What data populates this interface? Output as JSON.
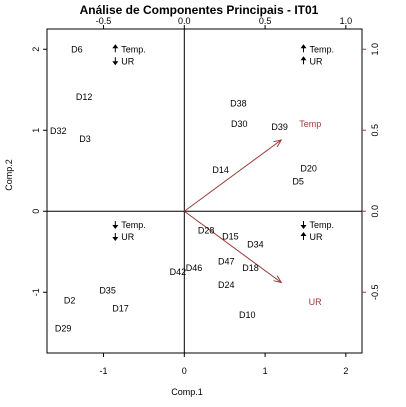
{
  "colors": {
    "ink": "#000000",
    "vector": "#9b3a3a"
  },
  "chart_data": {
    "type": "scatter",
    "title": "Análise de Componentes Principais - IT01",
    "xlabel": "Comp.1",
    "ylabel": "Comp.2",
    "xlim": [
      -1.7,
      2.2
    ],
    "ylim": [
      -1.75,
      2.25
    ],
    "xticks": [
      {
        "v": -1,
        "label": "-1"
      },
      {
        "v": 0,
        "label": "0"
      },
      {
        "v": 1,
        "label": "1"
      },
      {
        "v": 2,
        "label": "2"
      }
    ],
    "yticks": [
      {
        "v": -1,
        "label": "-1"
      },
      {
        "v": 0,
        "label": "0"
      },
      {
        "v": 1,
        "label": "1"
      },
      {
        "v": 2,
        "label": "2"
      }
    ],
    "x2lim": [
      -0.85,
      1.1
    ],
    "y2lim": [
      -0.875,
      1.125
    ],
    "x2ticks": [
      {
        "v": -0.5,
        "label": "-0.5"
      },
      {
        "v": 0,
        "label": "0.0"
      },
      {
        "v": 0.5,
        "label": "0.5"
      },
      {
        "v": 1.0,
        "label": "1.0"
      }
    ],
    "y2ticks": [
      {
        "v": -0.5,
        "label": "-0.5"
      },
      {
        "v": 0,
        "label": "0.0"
      },
      {
        "v": 0.5,
        "label": "0.5"
      },
      {
        "v": 1.0,
        "label": "1.0"
      }
    ],
    "grid": false,
    "points": [
      {
        "label": "D6",
        "x": -1.33,
        "y": 2.0
      },
      {
        "label": "D12",
        "x": -1.24,
        "y": 1.41
      },
      {
        "label": "D32",
        "x": -1.56,
        "y": 0.99
      },
      {
        "label": "D3",
        "x": -1.23,
        "y": 0.89
      },
      {
        "label": "D38",
        "x": 0.67,
        "y": 1.33
      },
      {
        "label": "D30",
        "x": 0.68,
        "y": 1.08
      },
      {
        "label": "D39",
        "x": 1.18,
        "y": 1.04
      },
      {
        "label": "D14",
        "x": 0.45,
        "y": 0.51
      },
      {
        "label": "D20",
        "x": 1.54,
        "y": 0.53
      },
      {
        "label": "D5",
        "x": 1.41,
        "y": 0.37
      },
      {
        "label": "D28",
        "x": 0.27,
        "y": -0.24
      },
      {
        "label": "D15",
        "x": 0.57,
        "y": -0.31
      },
      {
        "label": "D34",
        "x": 0.88,
        "y": -0.41
      },
      {
        "label": "D47",
        "x": 0.52,
        "y": -0.62
      },
      {
        "label": "D18",
        "x": 0.82,
        "y": -0.7
      },
      {
        "label": "D46",
        "x": 0.12,
        "y": -0.7
      },
      {
        "label": "D42",
        "x": -0.08,
        "y": -0.75
      },
      {
        "label": "D24",
        "x": 0.52,
        "y": -0.91
      },
      {
        "label": "D35",
        "x": -0.95,
        "y": -0.98
      },
      {
        "label": "D2",
        "x": -1.42,
        "y": -1.1
      },
      {
        "label": "D17",
        "x": -0.79,
        "y": -1.2
      },
      {
        "label": "D10",
        "x": 0.78,
        "y": -1.28
      },
      {
        "label": "D29",
        "x": -1.5,
        "y": -1.45
      }
    ],
    "vectors": [
      {
        "label": "Temp",
        "x2": 0.6,
        "y2": 0.44,
        "label_x2": 0.78,
        "label_y2": 0.54
      },
      {
        "label": "UR",
        "x2": 0.6,
        "y2": -0.44,
        "label_x2": 0.81,
        "label_y2": -0.56
      }
    ],
    "quadrant_keys": [
      {
        "x": -0.78,
        "y": 2.0,
        "lines": [
          {
            "arrow": "up",
            "text": "Temp."
          },
          {
            "arrow": "down",
            "text": "UR"
          }
        ]
      },
      {
        "x": 1.55,
        "y": 2.0,
        "lines": [
          {
            "arrow": "up",
            "text": "Temp."
          },
          {
            "arrow": "up",
            "text": "UR"
          }
        ]
      },
      {
        "x": -0.78,
        "y": -0.17,
        "lines": [
          {
            "arrow": "down",
            "text": "Temp."
          },
          {
            "arrow": "down",
            "text": "UR"
          }
        ]
      },
      {
        "x": 1.55,
        "y": -0.17,
        "lines": [
          {
            "arrow": "down",
            "text": "Temp."
          },
          {
            "arrow": "up",
            "text": "UR"
          }
        ]
      }
    ]
  }
}
